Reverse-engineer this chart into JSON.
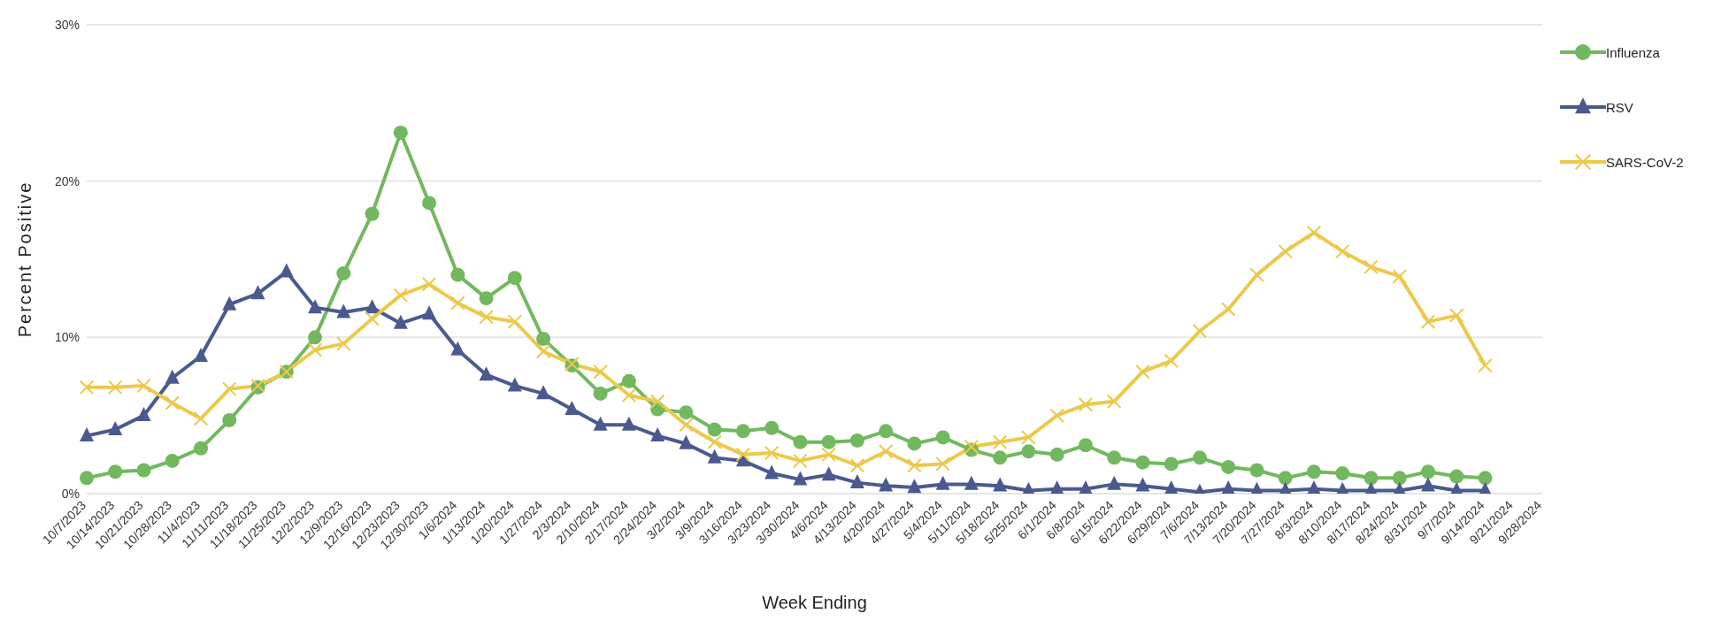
{
  "chart_data": {
    "type": "line",
    "xlabel": "Week Ending",
    "ylabel": "Percent Positive",
    "categories": [
      "10/7/2023",
      "10/14/2023",
      "10/21/2023",
      "10/28/2023",
      "11/4/2023",
      "11/11/2023",
      "11/18/2023",
      "11/25/2023",
      "12/2/2023",
      "12/9/2023",
      "12/16/2023",
      "12/23/2023",
      "12/30/2023",
      "1/6/2024",
      "1/13/2024",
      "1/20/2024",
      "1/27/2024",
      "2/3/2024",
      "2/10/2024",
      "2/17/2024",
      "2/24/2024",
      "3/2/2024",
      "3/9/2024",
      "3/16/2024",
      "3/23/2024",
      "3/30/2024",
      "4/6/2024",
      "4/13/2024",
      "4/20/2024",
      "4/27/2024",
      "5/4/2024",
      "5/11/2024",
      "5/18/2024",
      "5/25/2024",
      "6/1/2024",
      "6/8/2024",
      "6/15/2024",
      "6/22/2024",
      "6/29/2024",
      "7/6/2024",
      "7/13/2024",
      "7/20/2024",
      "7/27/2024",
      "8/3/2024",
      "8/10/2024",
      "8/17/2024",
      "8/24/2024",
      "8/31/2024",
      "9/7/2024",
      "9/14/2024",
      "9/21/2024",
      "9/28/2024"
    ],
    "series": [
      {
        "name": "Influenza",
        "color": "#72b85f",
        "marker": "circle",
        "values": [
          1.0,
          1.4,
          1.5,
          2.1,
          2.9,
          4.7,
          6.8,
          7.8,
          10.0,
          14.1,
          17.9,
          23.1,
          18.6,
          14.0,
          12.5,
          13.8,
          9.9,
          8.2,
          6.4,
          7.2,
          5.4,
          5.2,
          4.1,
          4.0,
          4.2,
          3.3,
          3.3,
          3.4,
          4.0,
          3.2,
          3.6,
          2.8,
          2.3,
          2.7,
          2.5,
          3.1,
          2.3,
          2.0,
          1.9,
          2.3,
          1.7,
          1.5,
          1.0,
          1.4,
          1.3,
          1.0,
          1.0,
          1.4,
          1.1,
          1.0,
          null,
          null
        ]
      },
      {
        "name": "RSV",
        "color": "#4a5a8f",
        "marker": "triangle",
        "values": [
          3.7,
          4.1,
          5.0,
          7.4,
          8.8,
          12.1,
          12.8,
          14.2,
          11.9,
          11.6,
          11.9,
          10.9,
          11.5,
          9.2,
          7.6,
          6.9,
          6.4,
          5.4,
          4.4,
          4.4,
          3.7,
          3.2,
          2.3,
          2.1,
          1.3,
          0.9,
          1.2,
          0.7,
          0.5,
          0.4,
          0.6,
          0.6,
          0.5,
          0.2,
          0.3,
          0.3,
          0.6,
          0.5,
          0.3,
          0.1,
          0.3,
          0.2,
          0.2,
          0.3,
          0.2,
          0.2,
          0.2,
          0.5,
          0.2,
          0.2,
          null,
          null
        ]
      },
      {
        "name": "SARS-CoV-2",
        "color": "#ecc94b",
        "marker": "cross",
        "values": [
          6.8,
          6.8,
          6.9,
          5.8,
          4.8,
          6.7,
          6.9,
          7.8,
          9.2,
          9.6,
          11.2,
          12.7,
          13.4,
          12.2,
          11.3,
          11.0,
          9.1,
          8.3,
          7.8,
          6.3,
          5.9,
          4.4,
          3.3,
          2.5,
          2.6,
          2.1,
          2.5,
          1.8,
          2.7,
          1.8,
          1.9,
          3.0,
          3.3,
          3.6,
          5.0,
          5.7,
          5.9,
          7.8,
          8.5,
          10.4,
          11.8,
          14.0,
          15.5,
          16.7,
          15.5,
          14.5,
          13.9,
          11.0,
          11.4,
          8.2,
          null,
          null
        ]
      }
    ],
    "ylim": [
      0,
      30
    ],
    "yticks": [
      {
        "value": 0,
        "label": "0%"
      },
      {
        "value": 10,
        "label": "10%"
      },
      {
        "value": 20,
        "label": "20%"
      },
      {
        "value": 30,
        "label": "30%"
      }
    ],
    "grid": "y",
    "legend": "top right",
    "line_style": "solid"
  }
}
